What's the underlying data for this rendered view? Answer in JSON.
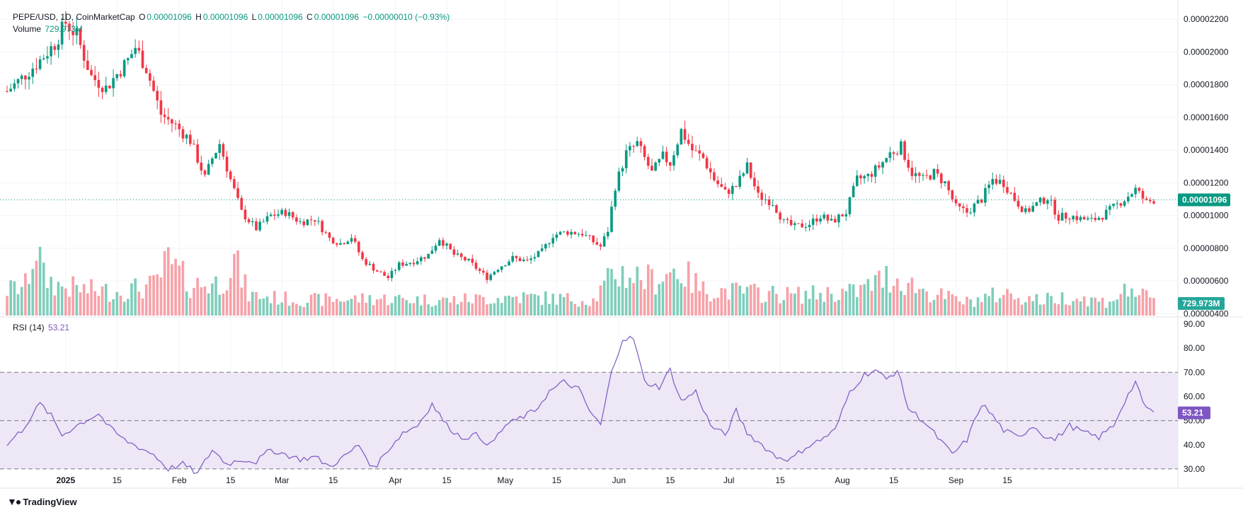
{
  "header": {
    "symbol": "PEPE/USD, 1D, CoinMarketCap",
    "open_label": "O",
    "open": "0.00001096",
    "high_label": "H",
    "high": "0.00001096",
    "low_label": "L",
    "low": "0.00001096",
    "close_label": "C",
    "close": "0.00001096",
    "change": "−0.00000010 (−0.93%)",
    "volume_label": "Volume",
    "volume_value": "729.973M"
  },
  "rsi_header": {
    "label": "RSI (14)",
    "value": "53.21"
  },
  "branding": {
    "logo_text": "TradingView",
    "icon": "tradingview-logo-icon"
  },
  "colors": {
    "up": "#089981",
    "down": "#f23645",
    "vol_up": "#7fcdbb",
    "vol_down": "#f7a1a8",
    "rsi": "#7e57c2",
    "rsi_band": "#ede7f6"
  },
  "chart_data": {
    "type": "candlestick",
    "price_axis": {
      "ticks": [
        "0.00002200",
        "0.00002000",
        "0.00001800",
        "0.00001600",
        "0.00001400",
        "0.00001200",
        "0.00001000",
        "0.00000800",
        "0.00000600",
        "0.00000400"
      ],
      "range": [
        3.8e-06,
        2.24e-05
      ],
      "last_price": 1.096e-05,
      "last_price_label": "0.00001096"
    },
    "volume_axis": {
      "last_volume_label": "729.973M"
    },
    "rsi_axis": {
      "ticks": [
        "90.00",
        "80.00",
        "70.00",
        "60.00",
        "50.00",
        "40.00",
        "30.00"
      ],
      "range": [
        25,
        90
      ],
      "band": [
        30,
        70
      ],
      "mid": 50,
      "last_value_label": "53.21",
      "last_value": 53.21
    },
    "x_axis": {
      "labels": [
        "2025",
        "15",
        "Feb",
        "15",
        "Mar",
        "15",
        "Apr",
        "15",
        "May",
        "15",
        "Jun",
        "15",
        "Jul",
        "15",
        "Aug",
        "15",
        "Sep",
        "15"
      ],
      "label_days": [
        31,
        45,
        62,
        76,
        90,
        104,
        121,
        135,
        151,
        165,
        182,
        196,
        212,
        226,
        243,
        257,
        274,
        288
      ]
    },
    "time_range": {
      "start": "2024-12-01",
      "end": "2025-09-17"
    },
    "price_keypoints": [
      [
        0,
        1.76
      ],
      [
        4,
        1.84
      ],
      [
        9,
        1.95
      ],
      [
        13,
        2.05
      ],
      [
        16,
        2.18
      ],
      [
        19,
        2.1
      ],
      [
        23,
        1.85
      ],
      [
        27,
        1.78
      ],
      [
        33,
        1.95
      ],
      [
        35,
        2.03
      ],
      [
        38,
        1.9
      ],
      [
        42,
        1.62
      ],
      [
        46,
        1.55
      ],
      [
        50,
        1.46
      ],
      [
        54,
        1.23
      ],
      [
        56,
        1.35
      ],
      [
        58,
        1.44
      ],
      [
        61,
        1.22
      ],
      [
        64,
        1.02
      ],
      [
        68,
        0.92
      ],
      [
        72,
        1.0
      ],
      [
        76,
        1.02
      ],
      [
        80,
        0.96
      ],
      [
        84,
        0.98
      ],
      [
        88,
        0.86
      ],
      [
        91,
        0.83
      ],
      [
        94,
        0.87
      ],
      [
        97,
        0.73
      ],
      [
        101,
        0.66
      ],
      [
        104,
        0.62
      ],
      [
        107,
        0.7
      ],
      [
        111,
        0.72
      ],
      [
        115,
        0.76
      ],
      [
        118,
        0.86
      ],
      [
        122,
        0.76
      ],
      [
        126,
        0.72
      ],
      [
        129,
        0.66
      ],
      [
        131,
        0.62
      ],
      [
        134,
        0.68
      ],
      [
        138,
        0.74
      ],
      [
        142,
        0.72
      ],
      [
        146,
        0.78
      ],
      [
        149,
        0.88
      ],
      [
        153,
        0.9
      ],
      [
        157,
        0.89
      ],
      [
        160,
        0.84
      ],
      [
        162,
        0.81
      ],
      [
        164,
        0.91
      ],
      [
        166,
        1.18
      ],
      [
        169,
        1.38
      ],
      [
        172,
        1.44
      ],
      [
        176,
        1.26
      ],
      [
        179,
        1.36
      ],
      [
        181,
        1.32
      ],
      [
        184,
        1.52
      ],
      [
        187,
        1.4
      ],
      [
        190,
        1.35
      ],
      [
        193,
        1.22
      ],
      [
        196,
        1.14
      ],
      [
        199,
        1.18
      ],
      [
        202,
        1.3
      ],
      [
        205,
        1.12
      ],
      [
        209,
        1.08
      ],
      [
        212,
        0.96
      ],
      [
        215,
        0.93
      ],
      [
        219,
        0.95
      ],
      [
        222,
        1.0
      ],
      [
        225,
        0.96
      ],
      [
        229,
        1.02
      ],
      [
        232,
        1.22
      ],
      [
        235,
        1.24
      ],
      [
        238,
        1.3
      ],
      [
        241,
        1.38
      ],
      [
        244,
        1.42
      ],
      [
        247,
        1.26
      ],
      [
        250,
        1.22
      ],
      [
        253,
        1.26
      ],
      [
        256,
        1.2
      ],
      [
        259,
        1.05
      ],
      [
        262,
        1.02
      ],
      [
        266,
        1.1
      ],
      [
        269,
        1.22
      ],
      [
        272,
        1.2
      ],
      [
        275,
        1.1
      ],
      [
        278,
        1.02
      ],
      [
        281,
        1.07
      ],
      [
        284,
        1.11
      ],
      [
        287,
        0.99
      ],
      [
        290,
        1.0
      ],
      [
        293,
        0.98
      ],
      [
        296,
        0.97
      ],
      [
        299,
        1.0
      ],
      [
        302,
        1.05
      ],
      [
        305,
        1.1
      ],
      [
        308,
        1.16
      ],
      [
        311,
        1.08
      ],
      [
        313,
        1.096
      ]
    ],
    "price_scale_note_units": "x 0.00001",
    "volume_keypoints": [
      [
        0,
        0.3
      ],
      [
        5,
        0.35
      ],
      [
        8,
        0.85
      ],
      [
        10,
        0.45
      ],
      [
        14,
        0.35
      ],
      [
        22,
        0.3
      ],
      [
        30,
        0.28
      ],
      [
        40,
        0.35
      ],
      [
        44,
        0.62
      ],
      [
        50,
        0.36
      ],
      [
        58,
        0.38
      ],
      [
        62,
        0.65
      ],
      [
        66,
        0.24
      ],
      [
        80,
        0.18
      ],
      [
        100,
        0.2
      ],
      [
        120,
        0.18
      ],
      [
        140,
        0.22
      ],
      [
        160,
        0.18
      ],
      [
        166,
        0.5
      ],
      [
        170,
        0.48
      ],
      [
        176,
        0.42
      ],
      [
        183,
        0.55
      ],
      [
        190,
        0.3
      ],
      [
        200,
        0.28
      ],
      [
        215,
        0.24
      ],
      [
        232,
        0.28
      ],
      [
        240,
        0.45
      ],
      [
        244,
        0.42
      ],
      [
        252,
        0.26
      ],
      [
        262,
        0.16
      ],
      [
        272,
        0.26
      ],
      [
        282,
        0.18
      ],
      [
        290,
        0.22
      ],
      [
        300,
        0.16
      ],
      [
        307,
        0.32
      ],
      [
        310,
        0.22
      ],
      [
        313,
        0.18
      ]
    ],
    "volume_scale_max_M": 4000,
    "rsi_keypoints": [
      [
        0,
        40
      ],
      [
        4,
        46
      ],
      [
        9,
        57
      ],
      [
        12,
        52
      ],
      [
        15,
        44
      ],
      [
        19,
        48
      ],
      [
        25,
        53
      ],
      [
        28,
        47
      ],
      [
        32,
        42
      ],
      [
        36,
        39
      ],
      [
        40,
        36
      ],
      [
        44,
        30
      ],
      [
        48,
        32
      ],
      [
        52,
        28
      ],
      [
        56,
        38
      ],
      [
        60,
        32
      ],
      [
        64,
        34
      ],
      [
        68,
        33
      ],
      [
        72,
        38
      ],
      [
        76,
        36
      ],
      [
        80,
        34
      ],
      [
        84,
        35
      ],
      [
        88,
        31
      ],
      [
        92,
        35
      ],
      [
        96,
        40
      ],
      [
        100,
        30
      ],
      [
        104,
        38
      ],
      [
        108,
        45
      ],
      [
        112,
        48
      ],
      [
        116,
        57
      ],
      [
        120,
        48
      ],
      [
        124,
        43
      ],
      [
        128,
        44
      ],
      [
        132,
        40
      ],
      [
        136,
        48
      ],
      [
        140,
        51
      ],
      [
        144,
        54
      ],
      [
        148,
        62
      ],
      [
        152,
        66
      ],
      [
        156,
        63
      ],
      [
        159,
        54
      ],
      [
        162,
        48
      ],
      [
        165,
        70
      ],
      [
        168,
        84
      ],
      [
        171,
        84
      ],
      [
        174,
        66
      ],
      [
        178,
        64
      ],
      [
        181,
        71
      ],
      [
        184,
        58
      ],
      [
        188,
        62
      ],
      [
        192,
        48
      ],
      [
        196,
        44
      ],
      [
        199,
        54
      ],
      [
        202,
        45
      ],
      [
        206,
        40
      ],
      [
        210,
        35
      ],
      [
        214,
        34
      ],
      [
        218,
        39
      ],
      [
        222,
        42
      ],
      [
        226,
        46
      ],
      [
        230,
        62
      ],
      [
        234,
        69
      ],
      [
        237,
        71
      ],
      [
        240,
        67
      ],
      [
        243,
        71
      ],
      [
        246,
        55
      ],
      [
        250,
        50
      ],
      [
        254,
        43
      ],
      [
        258,
        36
      ],
      [
        262,
        42
      ],
      [
        266,
        57
      ],
      [
        269,
        52
      ],
      [
        272,
        46
      ],
      [
        276,
        43
      ],
      [
        280,
        48
      ],
      [
        283,
        44
      ],
      [
        286,
        42
      ],
      [
        290,
        48
      ],
      [
        294,
        45
      ],
      [
        298,
        43
      ],
      [
        302,
        48
      ],
      [
        305,
        58
      ],
      [
        308,
        66
      ],
      [
        310,
        57
      ],
      [
        313,
        53.21
      ]
    ]
  }
}
